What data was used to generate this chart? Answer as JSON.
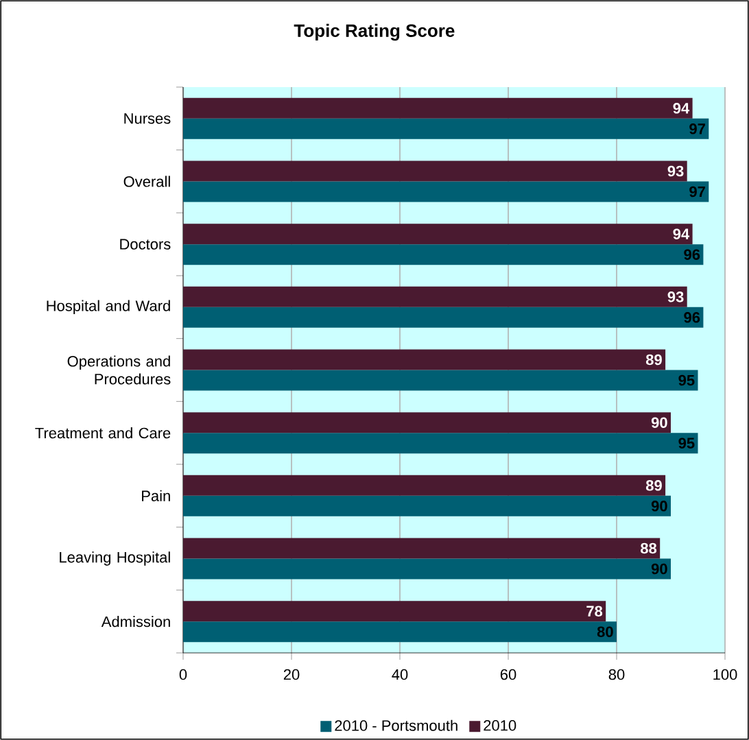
{
  "chart_data": {
    "type": "bar",
    "orientation": "horizontal",
    "title": "Topic Rating Score",
    "categories": [
      "Nurses",
      "Overall",
      "Doctors",
      "Hospital and Ward",
      "Operations and Procedures",
      "Treatment and Care",
      "Pain",
      "Leaving Hospital",
      "Admission"
    ],
    "series": [
      {
        "name": "2010 - Portsmouth",
        "color": "#005f73",
        "values": [
          97,
          97,
          96,
          96,
          95,
          95,
          90,
          90,
          80
        ]
      },
      {
        "name": "2010",
        "color": "#4a1a30",
        "values": [
          94,
          93,
          94,
          93,
          89,
          90,
          89,
          88,
          78
        ]
      }
    ],
    "xlim": [
      0,
      100
    ],
    "xticks": [
      0,
      20,
      40,
      60,
      80,
      100
    ],
    "grid": "x",
    "legend": "bottom",
    "data_labels": true
  }
}
